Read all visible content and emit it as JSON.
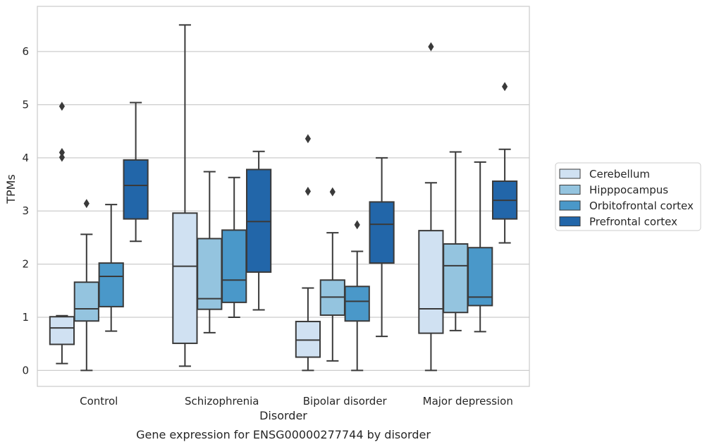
{
  "chart_data": {
    "type": "boxplot",
    "title": "",
    "caption": "Gene expression for ENSG00000277744 by disorder",
    "xlabel": "Disorder",
    "ylabel": "TPMs",
    "ylim": [
      -0.3,
      6.85
    ],
    "yticks": [
      0,
      1,
      2,
      3,
      4,
      5,
      6
    ],
    "grid": "horizontal",
    "legend_position": "right",
    "categories": [
      "Control",
      "Schizophrenia",
      "Bipolar disorder",
      "Major depression"
    ],
    "series": [
      {
        "name": "Cerebellum",
        "color": "#d0e1f2",
        "boxes": [
          {
            "whislo": 0.13,
            "q1": 0.49,
            "med": 0.8,
            "q3": 1.01,
            "whishi": 1.03,
            "fliers": [
              4.97,
              4.1,
              4.01
            ]
          },
          {
            "whislo": 0.08,
            "q1": 0.51,
            "med": 1.96,
            "q3": 2.96,
            "whishi": 6.5,
            "fliers": []
          },
          {
            "whislo": 0.0,
            "q1": 0.25,
            "med": 0.57,
            "q3": 0.92,
            "whishi": 1.55,
            "fliers": [
              4.36,
              3.37
            ]
          },
          {
            "whislo": 0.0,
            "q1": 0.7,
            "med": 1.16,
            "q3": 2.63,
            "whishi": 3.53,
            "fliers": [
              6.09
            ]
          }
        ]
      },
      {
        "name": "Hipppocampus",
        "color": "#94c4df",
        "boxes": [
          {
            "whislo": 0.0,
            "q1": 0.93,
            "med": 1.16,
            "q3": 1.66,
            "whishi": 2.56,
            "fliers": [
              3.14
            ]
          },
          {
            "whislo": 0.71,
            "q1": 1.15,
            "med": 1.35,
            "q3": 2.48,
            "whishi": 3.74,
            "fliers": []
          },
          {
            "whislo": 0.18,
            "q1": 1.04,
            "med": 1.38,
            "q3": 1.7,
            "whishi": 2.59,
            "fliers": [
              3.36
            ]
          },
          {
            "whislo": 0.75,
            "q1": 1.09,
            "med": 1.97,
            "q3": 2.38,
            "whishi": 4.11,
            "fliers": []
          }
        ]
      },
      {
        "name": "Orbitofrontal cortex",
        "color": "#4a98c9",
        "boxes": [
          {
            "whislo": 0.74,
            "q1": 1.2,
            "med": 1.77,
            "q3": 2.02,
            "whishi": 3.12,
            "fliers": []
          },
          {
            "whislo": 1.0,
            "q1": 1.28,
            "med": 1.7,
            "q3": 2.64,
            "whishi": 3.63,
            "fliers": []
          },
          {
            "whislo": 0.0,
            "q1": 0.93,
            "med": 1.3,
            "q3": 1.58,
            "whishi": 2.24,
            "fliers": [
              2.74
            ]
          },
          {
            "whislo": 0.73,
            "q1": 1.22,
            "med": 1.38,
            "q3": 2.31,
            "whishi": 3.92,
            "fliers": []
          }
        ]
      },
      {
        "name": "Prefrontal cortex",
        "color": "#2266a9",
        "boxes": [
          {
            "whislo": 2.43,
            "q1": 2.85,
            "med": 3.48,
            "q3": 3.96,
            "whishi": 5.04,
            "fliers": []
          },
          {
            "whislo": 1.14,
            "q1": 1.85,
            "med": 2.8,
            "q3": 3.78,
            "whishi": 4.12,
            "fliers": []
          },
          {
            "whislo": 0.64,
            "q1": 2.02,
            "med": 2.75,
            "q3": 3.17,
            "whishi": 4.0,
            "fliers": []
          },
          {
            "whislo": 2.4,
            "q1": 2.85,
            "med": 3.2,
            "q3": 3.56,
            "whishi": 4.16,
            "fliers": [
              5.34
            ]
          }
        ]
      }
    ]
  }
}
